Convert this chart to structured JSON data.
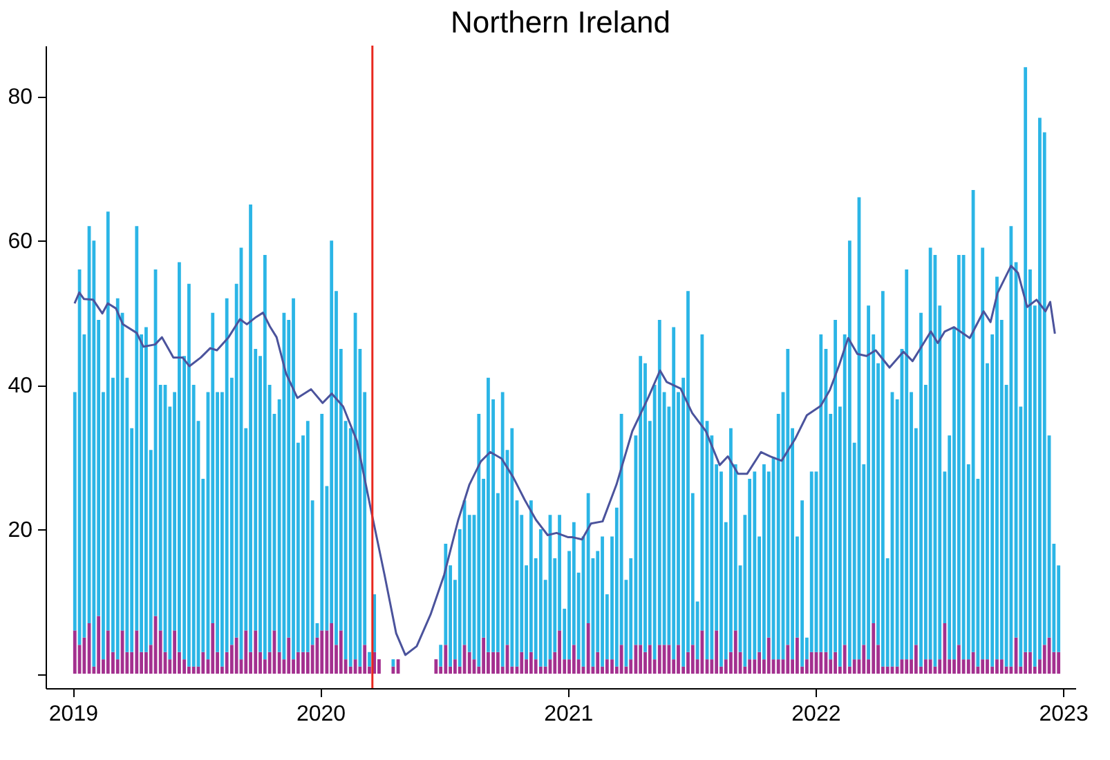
{
  "chart_data": {
    "type": "bar",
    "title": "Northern Ireland",
    "x": [
      2019.008,
      2019.027,
      2019.046,
      2019.066,
      2019.085,
      2019.104,
      2019.123,
      2019.142,
      2019.162,
      2019.181,
      2019.2,
      2019.219,
      2019.238,
      2019.258,
      2019.277,
      2019.296,
      2019.315,
      2019.334,
      2019.354,
      2019.373,
      2019.392,
      2019.411,
      2019.43,
      2019.45,
      2019.469,
      2019.488,
      2019.507,
      2019.526,
      2019.546,
      2019.565,
      2019.584,
      2019.603,
      2019.622,
      2019.642,
      2019.661,
      2019.68,
      2019.699,
      2019.718,
      2019.738,
      2019.757,
      2019.776,
      2019.795,
      2019.814,
      2019.834,
      2019.853,
      2019.872,
      2019.891,
      2019.91,
      2019.93,
      2019.949,
      2019.968,
      2019.987,
      2020.006,
      2020.026,
      2020.045,
      2020.064,
      2020.083,
      2020.102,
      2020.122,
      2020.141,
      2020.16,
      2020.179,
      2020.198,
      2020.218,
      2020.237,
      2020.256,
      2020.275,
      2020.294,
      2020.314,
      2020.333,
      2020.352,
      2020.371,
      2020.39,
      2020.41,
      2020.429,
      2020.448,
      2020.467,
      2020.486,
      2020.506,
      2020.525,
      2020.544,
      2020.563,
      2020.582,
      2020.602,
      2020.621,
      2020.64,
      2020.659,
      2020.678,
      2020.698,
      2020.717,
      2020.736,
      2020.755,
      2020.774,
      2020.794,
      2020.813,
      2020.832,
      2020.851,
      2020.87,
      2020.89,
      2020.909,
      2020.928,
      2020.947,
      2020.966,
      2020.986,
      2021.005,
      2021.024,
      2021.043,
      2021.062,
      2021.082,
      2021.101,
      2021.12,
      2021.139,
      2021.158,
      2021.178,
      2021.197,
      2021.216,
      2021.235,
      2021.254,
      2021.274,
      2021.293,
      2021.312,
      2021.331,
      2021.35,
      2021.37,
      2021.389,
      2021.408,
      2021.427,
      2021.446,
      2021.466,
      2021.485,
      2021.504,
      2021.523,
      2021.542,
      2021.562,
      2021.581,
      2021.6,
      2021.619,
      2021.638,
      2021.658,
      2021.677,
      2021.696,
      2021.715,
      2021.734,
      2021.754,
      2021.773,
      2021.792,
      2021.811,
      2021.83,
      2021.85,
      2021.869,
      2021.888,
      2021.907,
      2021.926,
      2021.946,
      2021.965,
      2021.984,
      2022.003,
      2022.022,
      2022.042,
      2022.061,
      2022.08,
      2022.099,
      2022.118,
      2022.138,
      2022.157,
      2022.176,
      2022.195,
      2022.214,
      2022.234,
      2022.253,
      2022.272,
      2022.291,
      2022.31,
      2022.33,
      2022.349,
      2022.368,
      2022.387,
      2022.406,
      2022.426,
      2022.445,
      2022.464,
      2022.483,
      2022.502,
      2022.522,
      2022.541,
      2022.56,
      2022.579,
      2022.598,
      2022.618,
      2022.637,
      2022.656,
      2022.675,
      2022.694,
      2022.714,
      2022.733,
      2022.752,
      2022.771,
      2022.79,
      2022.81,
      2022.829,
      2022.848,
      2022.867,
      2022.886,
      2022.906,
      2022.925,
      2022.944,
      2022.963,
      2022.982
    ],
    "series": [
      {
        "color": "#a3308f",
        "values": [
          6,
          4,
          5,
          7,
          1,
          8,
          2,
          6,
          3,
          2,
          6,
          3,
          3,
          6,
          3,
          3,
          4,
          8,
          6,
          3,
          2,
          6,
          3,
          2,
          1,
          1,
          1,
          3,
          2,
          7,
          3,
          1,
          3,
          4,
          5,
          2,
          6,
          3,
          6,
          3,
          2,
          3,
          6,
          3,
          2,
          5,
          2,
          3,
          3,
          3,
          4,
          5,
          6,
          6,
          7,
          4,
          6,
          2,
          1,
          2,
          1,
          4,
          1,
          3,
          2,
          null,
          null,
          1,
          2,
          null,
          null,
          null,
          null,
          null,
          null,
          null,
          2,
          1,
          4,
          1,
          2,
          1,
          4,
          3,
          2,
          1,
          5,
          3,
          3,
          3,
          1,
          4,
          1,
          1,
          3,
          2,
          3,
          2,
          1,
          1,
          2,
          3,
          6,
          2,
          2,
          4,
          2,
          1,
          7,
          1,
          3,
          1,
          2,
          2,
          1,
          4,
          1,
          2,
          4,
          4,
          3,
          4,
          2,
          4,
          4,
          4,
          2,
          4,
          1,
          3,
          4,
          2,
          6,
          2,
          2,
          6,
          1,
          2,
          3,
          6,
          3,
          1,
          2,
          2,
          3,
          2,
          5,
          2,
          2,
          2,
          4,
          2,
          5,
          1,
          2,
          3,
          3,
          3,
          3,
          2,
          3,
          1,
          4,
          1,
          2,
          2,
          4,
          2,
          7,
          4,
          1,
          1,
          1,
          1,
          2,
          2,
          2,
          4,
          1,
          2,
          2,
          1,
          2,
          7,
          2,
          2,
          4,
          2,
          2,
          3,
          1,
          2,
          2,
          1,
          2,
          2,
          1,
          1,
          5,
          1,
          3,
          3,
          1,
          2,
          4,
          5,
          3,
          3
        ]
      },
      {
        "color": "#2bb5e6",
        "values": [
          33,
          52,
          42,
          55,
          59,
          41,
          37,
          58,
          38,
          50,
          44,
          38,
          31,
          56,
          44,
          45,
          27,
          48,
          34,
          37,
          35,
          33,
          54,
          42,
          53,
          39,
          34,
          24,
          37,
          43,
          36,
          38,
          49,
          37,
          49,
          57,
          28,
          62,
          39,
          41,
          56,
          37,
          30,
          35,
          48,
          44,
          50,
          29,
          30,
          32,
          20,
          2,
          30,
          20,
          53,
          49,
          39,
          33,
          33,
          48,
          44,
          35,
          2,
          8,
          null,
          null,
          null,
          1,
          null,
          null,
          null,
          null,
          null,
          null,
          null,
          null,
          null,
          3,
          14,
          14,
          11,
          19,
          20,
          19,
          20,
          35,
          22,
          38,
          35,
          22,
          38,
          27,
          33,
          23,
          19,
          13,
          21,
          14,
          19,
          12,
          20,
          13,
          16,
          7,
          15,
          17,
          12,
          18,
          18,
          15,
          14,
          18,
          9,
          17,
          22,
          32,
          12,
          14,
          29,
          40,
          40,
          31,
          38,
          45,
          35,
          33,
          46,
          35,
          40,
          50,
          21,
          8,
          41,
          33,
          31,
          23,
          27,
          19,
          31,
          23,
          12,
          21,
          25,
          26,
          16,
          27,
          23,
          28,
          34,
          37,
          41,
          32,
          14,
          23,
          3,
          25,
          25,
          44,
          42,
          34,
          46,
          36,
          43,
          59,
          30,
          64,
          25,
          49,
          40,
          39,
          52,
          15,
          38,
          37,
          43,
          54,
          37,
          30,
          49,
          38,
          57,
          57,
          49,
          21,
          31,
          46,
          54,
          56,
          27,
          64,
          26,
          57,
          41,
          46,
          53,
          47,
          39,
          61,
          52,
          36,
          81,
          53,
          50,
          75,
          71,
          28,
          15,
          12
        ]
      },
      {
        "type": "line",
        "color": "#4b539c",
        "x": [
          2019.007,
          2019.026,
          2019.045,
          2019.082,
          2019.119,
          2019.141,
          2019.174,
          2019.202,
          2019.258,
          2019.285,
          2019.332,
          2019.36,
          2019.406,
          2019.443,
          2019.471,
          2019.517,
          2019.555,
          2019.582,
          2019.629,
          2019.675,
          2019.703,
          2019.74,
          2019.768,
          2019.796,
          2019.823,
          2019.861,
          2019.907,
          2019.962,
          2020.009,
          2020.046,
          2020.092,
          2020.148,
          2020.203,
          2020.259,
          2020.306,
          2020.343,
          2020.389,
          2020.445,
          2020.5,
          2020.556,
          2020.602,
          2020.648,
          2020.686,
          2020.732,
          2020.779,
          2020.825,
          2020.871,
          2020.918,
          2020.954,
          2021.001,
          2021.019,
          2021.057,
          2021.093,
          2021.14,
          2021.196,
          2021.26,
          2021.325,
          2021.372,
          2021.399,
          2021.455,
          2021.502,
          2021.557,
          2021.613,
          2021.646,
          2021.687,
          2021.724,
          2021.78,
          2021.817,
          2021.863,
          2021.919,
          2021.965,
          2022.021,
          2022.058,
          2022.095,
          2022.132,
          2022.169,
          2022.206,
          2022.243,
          2022.299,
          2022.355,
          2022.392,
          2022.466,
          2022.494,
          2022.522,
          2022.559,
          2022.623,
          2022.679,
          2022.707,
          2022.735,
          2022.79,
          2022.818,
          2022.855,
          2022.893,
          2022.929,
          2022.948,
          2022.967
        ],
        "values": [
          51.3,
          52.8,
          51.9,
          51.8,
          49.9,
          51.3,
          50.6,
          48.4,
          47.2,
          45.3,
          45.6,
          46.6,
          43.8,
          43.8,
          42.6,
          43.8,
          45.1,
          44.8,
          46.6,
          49.1,
          48.4,
          49.4,
          50,
          48.1,
          46.6,
          41.6,
          38.2,
          39.4,
          37.5,
          38.8,
          37,
          32.2,
          22.9,
          13.7,
          5.6,
          2.6,
          3.8,
          8.2,
          13.7,
          21.2,
          26.2,
          29.4,
          30.7,
          29.8,
          27.2,
          24.1,
          21.3,
          19.2,
          19.5,
          18.9,
          18.9,
          18.6,
          20.8,
          21.1,
          26.2,
          33.6,
          38.3,
          42,
          40.4,
          39.5,
          36.1,
          33.6,
          28.9,
          30.1,
          27.7,
          27.7,
          30.7,
          30.1,
          29.5,
          32.6,
          35.8,
          37.1,
          39.3,
          42.7,
          46.5,
          44.3,
          44,
          44.8,
          42.4,
          44.6,
          43.3,
          47.4,
          45.8,
          47.4,
          48,
          46.5,
          50.2,
          48.7,
          52.7,
          56.5,
          55.5,
          50.8,
          51.8,
          50.2,
          51.5,
          47.1
        ]
      }
    ],
    "xlim": [
      2018.89,
      2023.05
    ],
    "xticks": [
      2019,
      2020,
      2021,
      2022,
      2023
    ],
    "ylim": [
      -2,
      87
    ],
    "yticks": [
      {
        "value": 0,
        "label": null
      },
      20,
      40,
      60,
      80
    ],
    "ref_lines": [
      {
        "axis": "x",
        "value": 2020.21,
        "color": "#e8281e"
      }
    ],
    "stacked": true,
    "grid": false
  }
}
